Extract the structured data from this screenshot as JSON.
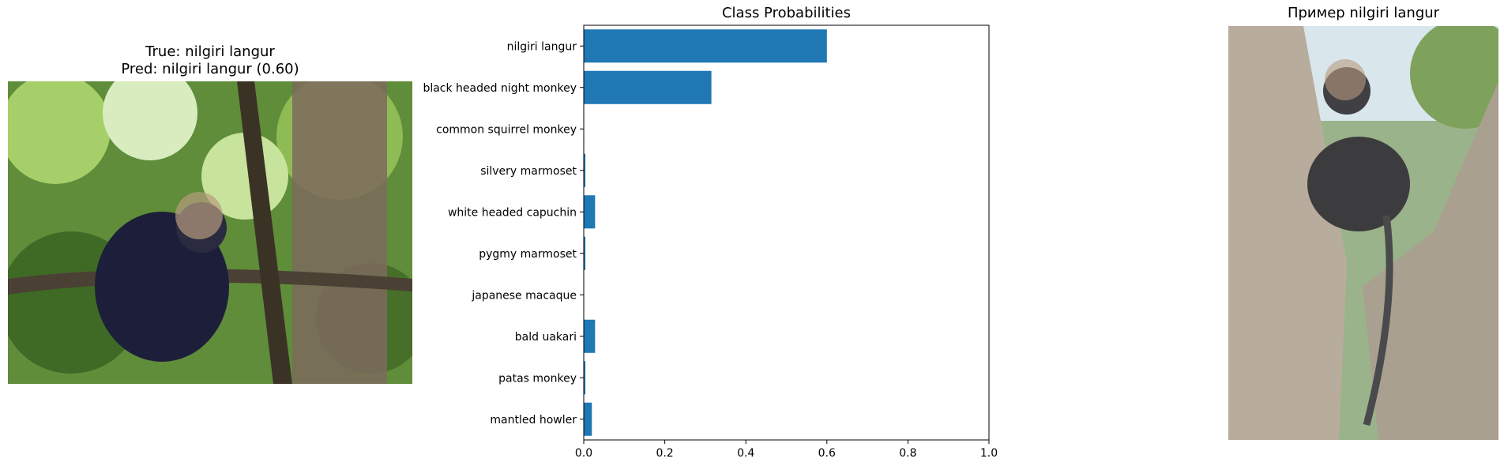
{
  "left_panel": {
    "title_line1": "True: nilgiri langur",
    "title_line2": "Pred: nilgiri langur (0.60)"
  },
  "right_panel": {
    "title": "Пример nilgiri langur"
  },
  "chart_data": {
    "type": "bar",
    "orientation": "horizontal",
    "title": "Class Probabilities",
    "xlabel": "",
    "ylabel": "",
    "categories": [
      "nilgiri langur",
      "black headed night monkey",
      "common squirrel monkey",
      "silvery marmoset",
      "white headed capuchin",
      "pygmy marmoset",
      "japanese macaque",
      "bald uakari",
      "patas monkey",
      "mantled howler"
    ],
    "values": [
      0.6,
      0.315,
      0.001,
      0.004,
      0.028,
      0.004,
      0.001,
      0.028,
      0.004,
      0.02
    ],
    "xlim": [
      0,
      1.0
    ],
    "xticks": [
      "0.0",
      "0.2",
      "0.4",
      "0.6",
      "0.8",
      "1.0"
    ],
    "grid": false,
    "bar_color": "#1f77b4"
  }
}
